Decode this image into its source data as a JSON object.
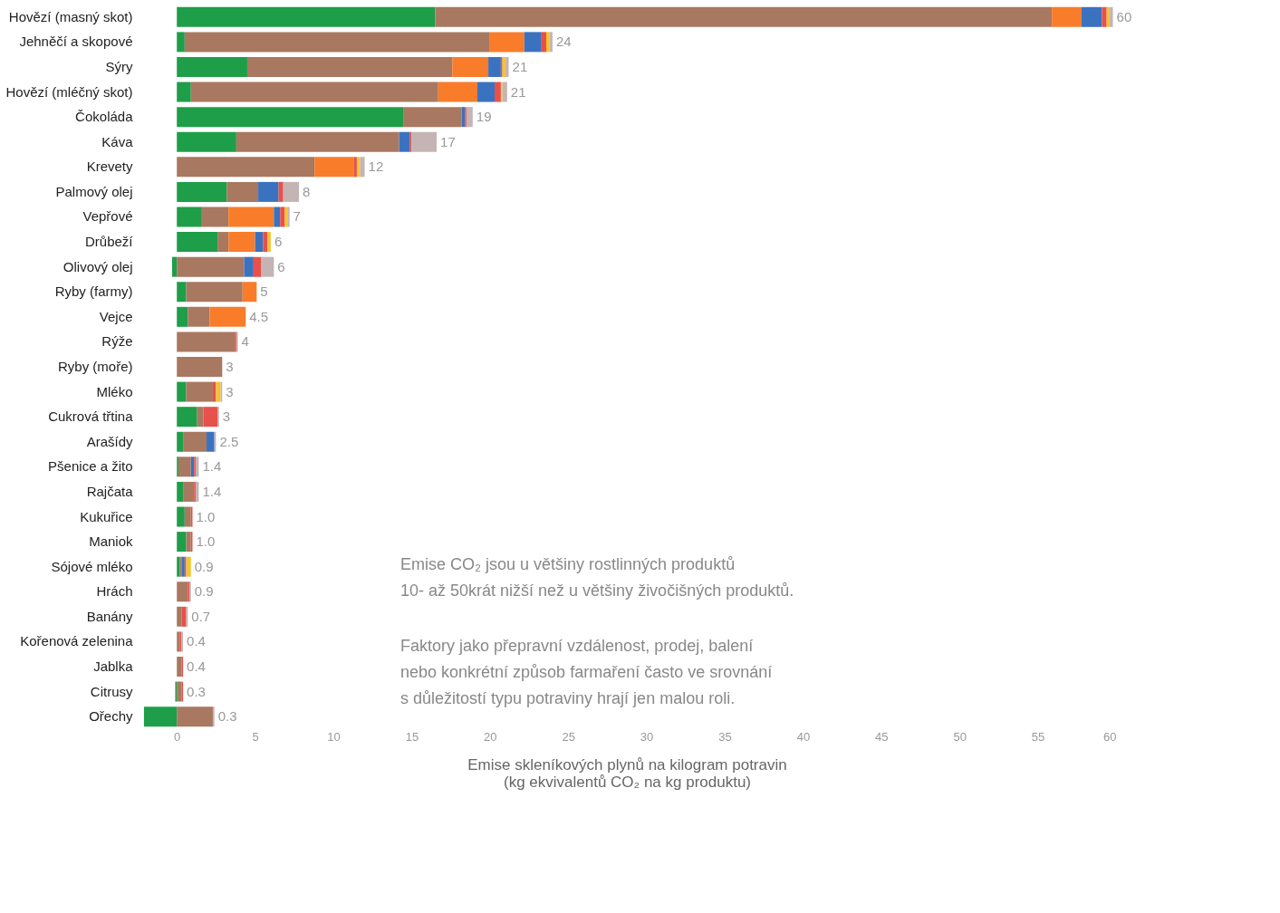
{
  "chart_data": {
    "type": "bar",
    "orientation": "horizontal",
    "stacked": true,
    "categories": [
      "Hovězí (masný skot)",
      "Jehněčí a skopové",
      "Sýry",
      "Hovězí (mléčný skot)",
      "Čokoláda",
      "Káva",
      "Krevety",
      "Palmový olej",
      "Vepřové",
      "Drůbeží",
      "Olivový olej",
      "Ryby (farmy)",
      "Vejce",
      "Rýže",
      "Ryby (moře)",
      "Mléko",
      "Cukrová třtina",
      "Arašídy",
      "Pšenice a žito",
      "Rajčata",
      "Kukuřice",
      "Maniok",
      "Sójové mléko",
      "Hrách",
      "Banány",
      "Kořenová zelenina",
      "Jablka",
      "Citrusy",
      "Ořechy"
    ],
    "series": [
      {
        "color": "#1e9e48",
        "values": [
          16.5,
          0.5,
          4.5,
          0.9,
          14.5,
          3.8,
          null,
          3.2,
          1.6,
          2.6,
          -0.3,
          0.6,
          0.7,
          null,
          null,
          0.6,
          1.3,
          0.4,
          0.1,
          0.4,
          0.5,
          0.6,
          0.2,
          null,
          null,
          null,
          null,
          -0.1,
          -2.1
        ]
      },
      {
        "color": "#a97860",
        "values": [
          39.4,
          19.5,
          13.1,
          15.8,
          3.7,
          10.4,
          8.8,
          2.0,
          1.7,
          0.7,
          4.3,
          3.6,
          1.4,
          3.7,
          2.9,
          1.7,
          0.4,
          1.5,
          0.8,
          0.7,
          0.4,
          0.3,
          0.1,
          0.7,
          0.3,
          0.2,
          0.3,
          0.3,
          2.3
        ]
      },
      {
        "color": "#f97c2a",
        "values": [
          1.9,
          2.2,
          2.3,
          2.5,
          null,
          null,
          2.5,
          null,
          2.9,
          1.7,
          null,
          0.9,
          2.3,
          null,
          null,
          null,
          null,
          null,
          null,
          null,
          null,
          null,
          null,
          null,
          null,
          null,
          null,
          null,
          null
        ]
      },
      {
        "color": "#3a72c0",
        "values": [
          1.3,
          1.1,
          0.8,
          1.1,
          0.2,
          0.7,
          null,
          1.3,
          0.4,
          0.5,
          0.6,
          null,
          null,
          null,
          null,
          null,
          null,
          0.5,
          0.2,
          null,
          null,
          null,
          0.2,
          null,
          null,
          null,
          null,
          null,
          null
        ]
      },
      {
        "color": "#e8504a",
        "values": [
          0.3,
          0.3,
          0.1,
          0.4,
          0.1,
          0.1,
          0.2,
          0.3,
          0.3,
          0.3,
          0.5,
          null,
          null,
          0.1,
          null,
          0.2,
          0.9,
          null,
          0.1,
          0.1,
          0.1,
          0.1,
          0.1,
          0.1,
          0.3,
          0.1,
          0.1,
          0.1,
          null
        ]
      },
      {
        "color": "#f4c430",
        "values": [
          0.2,
          0.2,
          0.2,
          0.1,
          null,
          null,
          0.2,
          null,
          0.2,
          0.2,
          null,
          null,
          null,
          null,
          null,
          0.3,
          null,
          null,
          null,
          null,
          null,
          null,
          0.3,
          null,
          null,
          null,
          null,
          null,
          null
        ]
      },
      {
        "color": "#c4b4b4",
        "values": [
          0.2,
          0.2,
          0.2,
          0.3,
          0.4,
          1.6,
          0.3,
          1.0,
          0.1,
          null,
          0.8,
          null,
          null,
          0.1,
          null,
          0.1,
          0.1,
          0.1,
          0.2,
          0.2,
          null,
          null,
          null,
          0.1,
          0.1,
          0.1,
          null,
          null,
          0.1
        ]
      }
    ],
    "value_labels": [
      "60",
      "24",
      "21",
      "21",
      "19",
      "17",
      "12",
      "8",
      "7",
      "6",
      "6",
      "5",
      "4.5",
      "4",
      "3",
      "3",
      "3",
      "2.5",
      "1.4",
      "1.4",
      "1.0",
      "1.0",
      "0.9",
      "0.9",
      "0.7",
      "0.4",
      "0.4",
      "0.3",
      "0.3"
    ],
    "xlim": [
      -2.5,
      60
    ],
    "xticks": [
      0,
      5,
      10,
      15,
      20,
      25,
      30,
      35,
      40,
      45,
      50,
      55,
      60
    ],
    "xlabel": "Emise skleníkových plynů na kilogram potravin\n(kg ekvivalentů CO₂ na kg produktu)",
    "annotations": [
      "Emise CO₂ jsou u většiny rostlinných produktů\n10- až 50krát nižší než u většiny živočišných produktů.",
      "Faktory jako přepravní vzdálenost, prodej, balení\nnebo konkrétní způsob farmaření často ve srovnání\ns důležitostí typu potraviny hrají jen malou roli."
    ],
    "grid": false,
    "legend": false
  }
}
